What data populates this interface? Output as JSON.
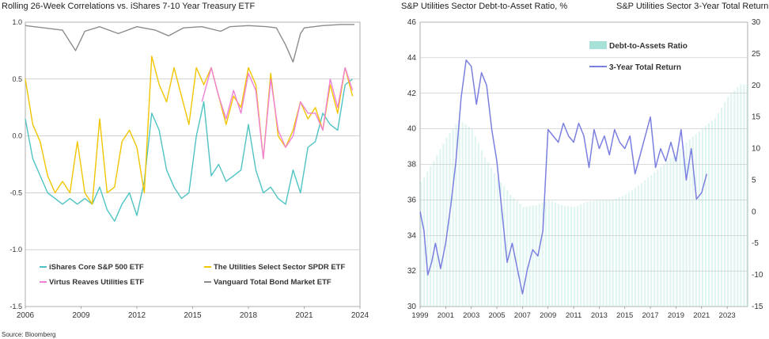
{
  "left_title": "Rolling 26-Week Correlations vs. iShares 7-10 Year Treasury ETF",
  "right_title": "S&P Utilities Sector Debt-to-Asset Ratio, %",
  "right_title2": "S&P Utilities Sector 3-Year Total Return, %",
  "source": "Source: Bloomberg",
  "chart_data": [
    {
      "type": "line",
      "title": "Rolling 26-Week Correlations vs. iShares 7-10 Year Treasury ETF",
      "xlabel": "",
      "ylabel": "",
      "xlim": [
        2006,
        2024
      ],
      "ylim": [
        -1.5,
        1.0
      ],
      "x_ticks": [
        "2006",
        "2009",
        "2012",
        "2015",
        "2018",
        "2021",
        "2024"
      ],
      "y_ticks": [
        "1.0",
        "0.5",
        "0.0",
        "-0.5",
        "-1.0",
        "-1.5"
      ],
      "grid": "horizontal",
      "legend": "bottom",
      "series": [
        {
          "name": "iShares Core S&P 500 ETF",
          "color": "#4fc3c3",
          "x": [
            2006,
            2006.4,
            2006.8,
            2007.2,
            2007.6,
            2008,
            2008.4,
            2008.8,
            2009.2,
            2009.6,
            2010,
            2010.4,
            2010.8,
            2011.2,
            2011.6,
            2012,
            2012.4,
            2012.8,
            2013.2,
            2013.6,
            2014,
            2014.4,
            2014.8,
            2015.2,
            2015.6,
            2016,
            2016.4,
            2016.8,
            2017.2,
            2017.6,
            2018,
            2018.4,
            2018.8,
            2019.2,
            2019.6,
            2020,
            2020.4,
            2020.8,
            2021.2,
            2021.6,
            2022,
            2022.4,
            2022.8,
            2023.2,
            2023.6
          ],
          "y": [
            0.15,
            -0.2,
            -0.35,
            -0.5,
            -0.55,
            -0.6,
            -0.55,
            -0.6,
            -0.55,
            -0.6,
            -0.45,
            -0.65,
            -0.75,
            -0.6,
            -0.5,
            -0.7,
            -0.4,
            0.2,
            0.05,
            -0.3,
            -0.45,
            -0.55,
            -0.5,
            0.0,
            0.3,
            -0.35,
            -0.25,
            -0.4,
            -0.35,
            -0.3,
            0.1,
            -0.3,
            -0.5,
            -0.45,
            -0.55,
            -0.6,
            -0.3,
            -0.5,
            -0.1,
            -0.05,
            0.2,
            0.1,
            0.05,
            0.45,
            0.5
          ]
        },
        {
          "name": "The Utilities Select Sector SPDR ETF",
          "color": "#f2c500",
          "x": [
            2006,
            2006.4,
            2006.8,
            2007.2,
            2007.6,
            2008,
            2008.4,
            2008.8,
            2009.2,
            2009.6,
            2010,
            2010.4,
            2010.8,
            2011.2,
            2011.6,
            2012,
            2012.4,
            2012.8,
            2013.2,
            2013.6,
            2014,
            2014.4,
            2014.8,
            2015.2,
            2015.6,
            2016,
            2016.4,
            2016.8,
            2017.2,
            2017.6,
            2018,
            2018.4,
            2018.8,
            2019.2,
            2019.6,
            2020,
            2020.4,
            2020.8,
            2021.2,
            2021.6,
            2022,
            2022.4,
            2022.8,
            2023.2,
            2023.6
          ],
          "y": [
            0.5,
            0.1,
            -0.05,
            -0.35,
            -0.5,
            -0.4,
            -0.5,
            -0.05,
            -0.5,
            -0.6,
            0.15,
            -0.5,
            -0.45,
            -0.05,
            0.05,
            -0.1,
            -0.5,
            0.7,
            0.45,
            0.3,
            0.6,
            0.35,
            0.1,
            0.6,
            0.45,
            0.6,
            0.35,
            0.1,
            0.35,
            0.25,
            0.6,
            0.45,
            -0.2,
            0.55,
            0.0,
            -0.1,
            0.05,
            0.3,
            0.15,
            0.25,
            0.05,
            0.45,
            0.2,
            0.6,
            0.35
          ]
        },
        {
          "name": "Virtus Reaves Utilities ETF",
          "color": "#f080d6",
          "x": [
            2015.5,
            2016,
            2016.4,
            2016.8,
            2017.2,
            2017.6,
            2018,
            2018.4,
            2018.8,
            2019.2,
            2019.6,
            2020,
            2020.4,
            2020.8,
            2021.2,
            2021.6,
            2022,
            2022.4,
            2022.8,
            2023.2,
            2023.6
          ],
          "y": [
            0.3,
            0.6,
            0.35,
            0.15,
            0.4,
            0.2,
            0.55,
            0.4,
            -0.2,
            0.5,
            0.05,
            -0.1,
            0.0,
            0.3,
            0.2,
            0.2,
            0.05,
            0.5,
            0.25,
            0.6,
            0.4
          ]
        },
        {
          "name": "Vanguard Total Bond Market ETF",
          "color": "#8c8c8c",
          "x": [
            2006,
            2007,
            2008,
            2008.7,
            2009.2,
            2010,
            2011,
            2012,
            2013,
            2013.7,
            2014.5,
            2015.5,
            2016.5,
            2017,
            2018,
            2019,
            2019.5,
            2020,
            2020.4,
            2020.8,
            2021,
            2022,
            2023,
            2023.7
          ],
          "y": [
            0.97,
            0.95,
            0.93,
            0.75,
            0.92,
            0.96,
            0.9,
            0.96,
            0.93,
            0.88,
            0.95,
            0.96,
            0.92,
            0.96,
            0.97,
            0.96,
            0.95,
            0.8,
            0.65,
            0.9,
            0.95,
            0.97,
            0.98,
            0.98
          ]
        }
      ]
    },
    {
      "type": "bar+line",
      "title": "S&P Utilities Sector Debt-to-Asset Ratio, %",
      "title_right": "S&P Utilities Sector 3-Year Total Return, %",
      "xlim": [
        1999,
        2024.6
      ],
      "y_left": [
        30,
        46
      ],
      "y_right": [
        -15,
        30
      ],
      "x_ticks": [
        "1999",
        "2001",
        "2003",
        "2005",
        "2007",
        "2009",
        "2011",
        "2013",
        "2015",
        "2017",
        "2019",
        "2021",
        "2023"
      ],
      "y_left_ticks": [
        "46",
        "44",
        "42",
        "40",
        "38",
        "36",
        "34",
        "32",
        "30"
      ],
      "y_right_ticks": [
        "30",
        "25",
        "20",
        "15",
        "10",
        "5",
        "0",
        "-5",
        "-10",
        "-15"
      ],
      "grid": "horizontal",
      "legend": "top-right",
      "series": [
        {
          "name": "Debt-to-Assets Ratio",
          "color": "#a6e2d7",
          "axis": "left",
          "x": [
            1999,
            2000,
            2001,
            2002,
            2003,
            2004,
            2005,
            2006,
            2007,
            2008,
            2009,
            2010,
            2011,
            2012,
            2013,
            2014,
            2015,
            2016,
            2017,
            2018,
            2019,
            2020,
            2021,
            2022,
            2023,
            2024
          ],
          "y": [
            37.0,
            38.2,
            39.5,
            40.5,
            40.0,
            38.4,
            37.2,
            36.3,
            35.6,
            35.7,
            36.0,
            35.7,
            35.6,
            35.9,
            36.0,
            36.0,
            36.3,
            36.8,
            37.4,
            38.0,
            38.7,
            39.4,
            40.0,
            40.6,
            41.8,
            42.5
          ]
        },
        {
          "name": "3-Year Total Return",
          "color": "#7b7fe0",
          "axis": "right",
          "x": [
            1999,
            1999.3,
            1999.6,
            1999.9,
            2000.2,
            2000.6,
            2001,
            2001.4,
            2001.8,
            2002.2,
            2002.6,
            2003,
            2003.4,
            2003.8,
            2004.2,
            2004.6,
            2005,
            2005.4,
            2005.8,
            2006.2,
            2006.6,
            2007,
            2007.4,
            2007.8,
            2008.2,
            2008.6,
            2009,
            2009.4,
            2009.8,
            2010.2,
            2010.6,
            2011,
            2011.4,
            2011.8,
            2012.2,
            2012.6,
            2013,
            2013.4,
            2013.8,
            2014.2,
            2014.6,
            2015,
            2015.4,
            2015.8,
            2016.2,
            2016.6,
            2017,
            2017.4,
            2017.8,
            2018.2,
            2018.6,
            2019,
            2019.4,
            2019.8,
            2020.2,
            2020.6,
            2021,
            2021.4
          ],
          "y": [
            0,
            -3,
            -10,
            -8,
            -5,
            -9,
            -5,
            1,
            8,
            18,
            24,
            23,
            17,
            22,
            20,
            13,
            8,
            0,
            -8,
            -5,
            -9,
            -13,
            -9,
            -6,
            -7,
            -3,
            13,
            12,
            11,
            14,
            12,
            11,
            14,
            12,
            7,
            13,
            10,
            12,
            9,
            13,
            11,
            10,
            12,
            6,
            9,
            12,
            15,
            7,
            10,
            8,
            11,
            8,
            13,
            5,
            10,
            2,
            3,
            6
          ]
        }
      ]
    }
  ]
}
